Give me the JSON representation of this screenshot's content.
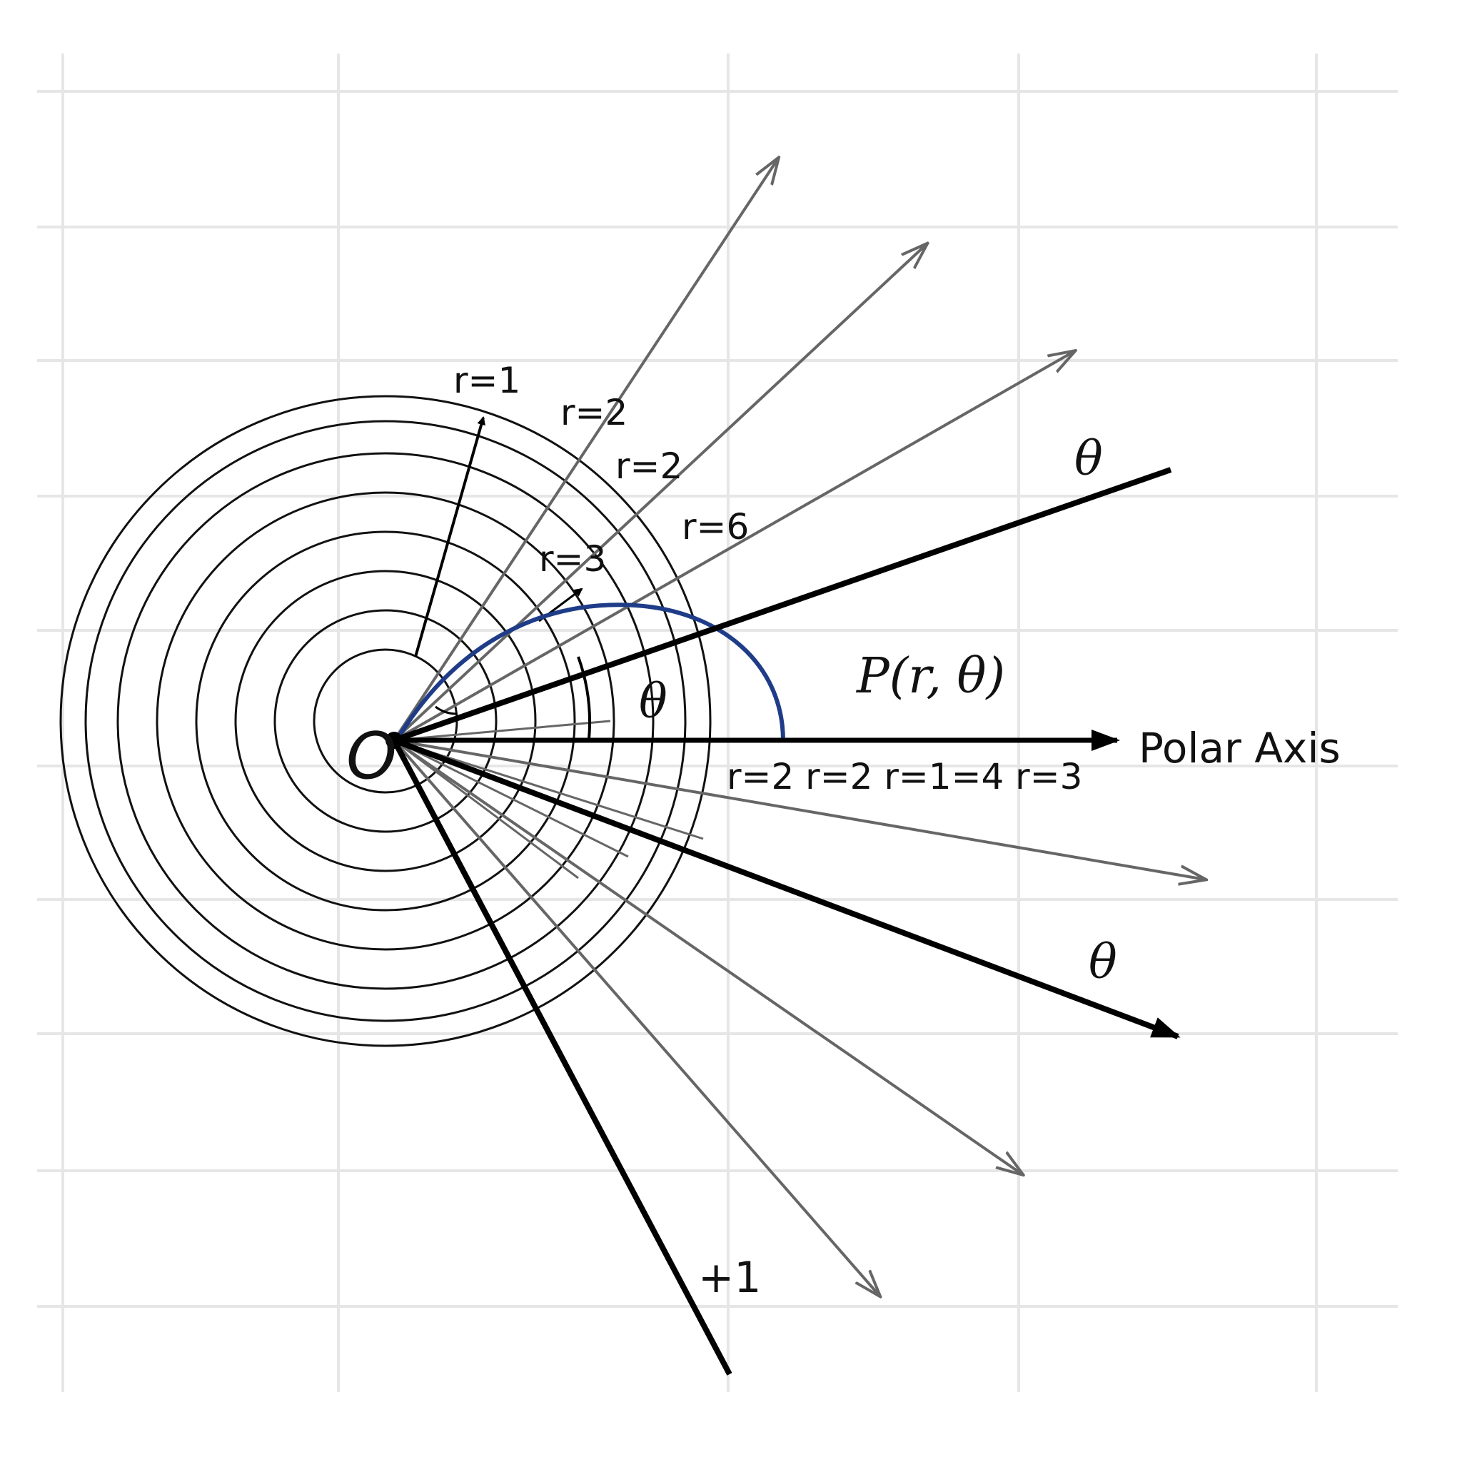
{
  "diagram": {
    "origin_label": "O",
    "axis_label": "Polar Axis",
    "point_label": "P(r, θ)",
    "angle_label_center": "θ",
    "angle_label_upper": "θ",
    "angle_label_lower": "θ",
    "ray_label_bottom": "+1",
    "radius_labels": {
      "r1": "r=1",
      "r2a": "r=2",
      "r2b": "r=2",
      "r6": "r=6",
      "r3": "r=3"
    },
    "axis_tick_labels": "r=2 r=2 r=1=4 r=3",
    "colors": {
      "grid": "#e6e6e6",
      "circles": "#111111",
      "rays_main": "#000000",
      "rays_secondary": "#666666",
      "curve": "#1f3c88"
    }
  }
}
